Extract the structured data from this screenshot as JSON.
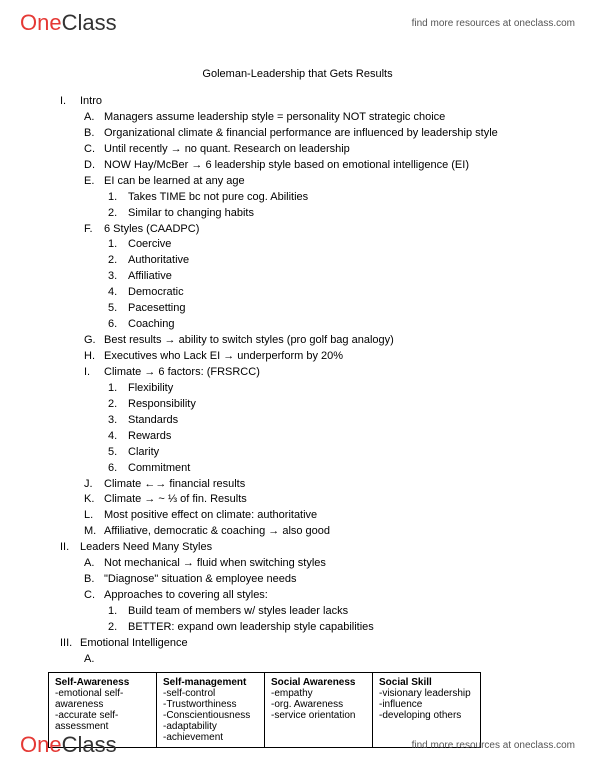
{
  "header": {
    "logo_one": "One",
    "logo_class": "Class",
    "link_text": "find more resources at oneclass.com"
  },
  "title": "Goleman-Leadership that Gets Results",
  "outline": [
    {
      "lvl": 1,
      "m": "I.",
      "t": "Intro"
    },
    {
      "lvl": 2,
      "m": "A.",
      "t": "Managers assume leadership style = personality NOT strategic choice"
    },
    {
      "lvl": 2,
      "m": "B.",
      "t": "Organizational climate & financial performance are influenced by leadership style"
    },
    {
      "lvl": 2,
      "m": "C.",
      "t": "Until recently → no quant. Research on leadership"
    },
    {
      "lvl": 2,
      "m": "D.",
      "t": "NOW Hay/McBer → 6 leadership style based on emotional intelligence (EI)"
    },
    {
      "lvl": 2,
      "m": "E.",
      "t": "EI can be learned at any age"
    },
    {
      "lvl": 3,
      "m": "1.",
      "t": "Takes TIME bc not pure cog. Abilities"
    },
    {
      "lvl": 3,
      "m": "2.",
      "t": "Similar to changing habits"
    },
    {
      "lvl": 2,
      "m": "F.",
      "t": "6 Styles (CAADPC)"
    },
    {
      "lvl": 3,
      "m": "1.",
      "t": "Coercive"
    },
    {
      "lvl": 3,
      "m": "2.",
      "t": "Authoritative"
    },
    {
      "lvl": 3,
      "m": "3.",
      "t": "Affiliative"
    },
    {
      "lvl": 3,
      "m": "4.",
      "t": "Democratic"
    },
    {
      "lvl": 3,
      "m": "5.",
      "t": "Pacesetting"
    },
    {
      "lvl": 3,
      "m": "6.",
      "t": "Coaching"
    },
    {
      "lvl": 2,
      "m": "G.",
      "t": "Best results → ability to switch styles (pro golf bag analogy)"
    },
    {
      "lvl": 2,
      "m": "H.",
      "t": "Executives who Lack EI → underperform by 20%"
    },
    {
      "lvl": 2,
      "m": "I.",
      "t": "Climate → 6 factors: (FRSRCC)"
    },
    {
      "lvl": 3,
      "m": "1.",
      "t": "Flexibility"
    },
    {
      "lvl": 3,
      "m": "2.",
      "t": "Responsibility"
    },
    {
      "lvl": 3,
      "m": "3.",
      "t": "Standards"
    },
    {
      "lvl": 3,
      "m": "4.",
      "t": "Rewards"
    },
    {
      "lvl": 3,
      "m": "5.",
      "t": "Clarity"
    },
    {
      "lvl": 3,
      "m": "6.",
      "t": "Commitment"
    },
    {
      "lvl": 2,
      "m": "J.",
      "t": "Climate ←→ financial results"
    },
    {
      "lvl": 2,
      "m": "K.",
      "t": "Climate → ~ ⅓ of fin. Results"
    },
    {
      "lvl": 2,
      "m": "L.",
      "t": "Most positive effect on climate: authoritative"
    },
    {
      "lvl": 2,
      "m": "M.",
      "t": "Affiliative, democratic & coaching → also good"
    },
    {
      "lvl": 1,
      "m": "II.",
      "t": "Leaders Need Many Styles"
    },
    {
      "lvl": 2,
      "m": "A.",
      "t": "Not mechanical → fluid when switching styles"
    },
    {
      "lvl": 2,
      "m": "B.",
      "t": "\"Diagnose\" situation & employee needs"
    },
    {
      "lvl": 2,
      "m": "C.",
      "t": "Approaches to covering all styles:"
    },
    {
      "lvl": 3,
      "m": "1.",
      "t": "Build team of members w/ styles leader lacks"
    },
    {
      "lvl": 3,
      "m": "2.",
      "t": "BETTER: expand own leadership style capabilities"
    },
    {
      "lvl": 1,
      "m": "III.",
      "t": "Emotional Intelligence"
    },
    {
      "lvl": 2,
      "m": "A.",
      "t": ""
    }
  ],
  "table": {
    "headers": [
      "Self-Awareness",
      "Self-management",
      "Social Awareness",
      "Social Skill"
    ],
    "cols": [
      [
        "-emotional self-awareness",
        "-accurate self-assessment"
      ],
      [
        "-self-control",
        "-Trustworthiness",
        "-Conscientiousness",
        "-adaptability",
        "-achievement"
      ],
      [
        "-empathy",
        "-org. Awareness",
        "-service orientation"
      ],
      [
        "-visionary leadership",
        "-influence",
        "-developing others"
      ]
    ]
  },
  "footer": {
    "logo_one": "One",
    "logo_class": "Class",
    "link_text": "find more resources at oneclass.com"
  }
}
